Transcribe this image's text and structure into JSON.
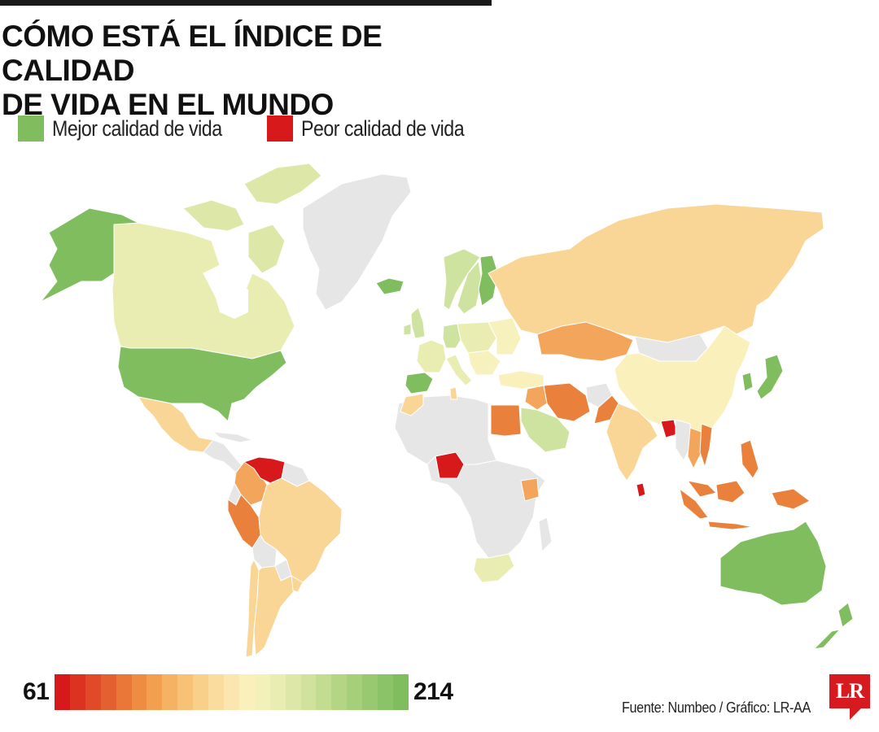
{
  "title_line1": "CÓMO ESTÁ EL ÍNDICE DE CALIDAD",
  "title_line2": "DE VIDA EN EL MUNDO",
  "legend": {
    "better": {
      "label": "Mejor calidad de vida",
      "color": "#7fbd5f"
    },
    "worse": {
      "label": "Peor calidad de vida",
      "color": "#d7191c"
    }
  },
  "scale": {
    "min": "61",
    "max": "214",
    "colors": [
      "#d7191c",
      "#dc3220",
      "#e04a28",
      "#e56030",
      "#ea7638",
      "#ee8c42",
      "#f2a050",
      "#f5b262",
      "#f7c276",
      "#f8d08a",
      "#f9dc9e",
      "#fae6ae",
      "#faf0bc",
      "#f3f1ba",
      "#e9edb2",
      "#dde8a8",
      "#d0e29c",
      "#c2dc90",
      "#b4d584",
      "#a6cf7a",
      "#98c970",
      "#8ac368",
      "#7fbd5f"
    ]
  },
  "source": "Fuente: Numbeo / Gráfico: LR-AA",
  "logo_text": "LR",
  "colors": {
    "no_data": "#e6e6e6",
    "border": "#ffffff",
    "green": "#7fbd5f",
    "light_green": "#cfe3a0",
    "pale_yellow": "#f7f1bd",
    "light_orange": "#f9d596",
    "orange": "#f3a65b",
    "dark_orange": "#e9813c",
    "red": "#d7191c"
  }
}
